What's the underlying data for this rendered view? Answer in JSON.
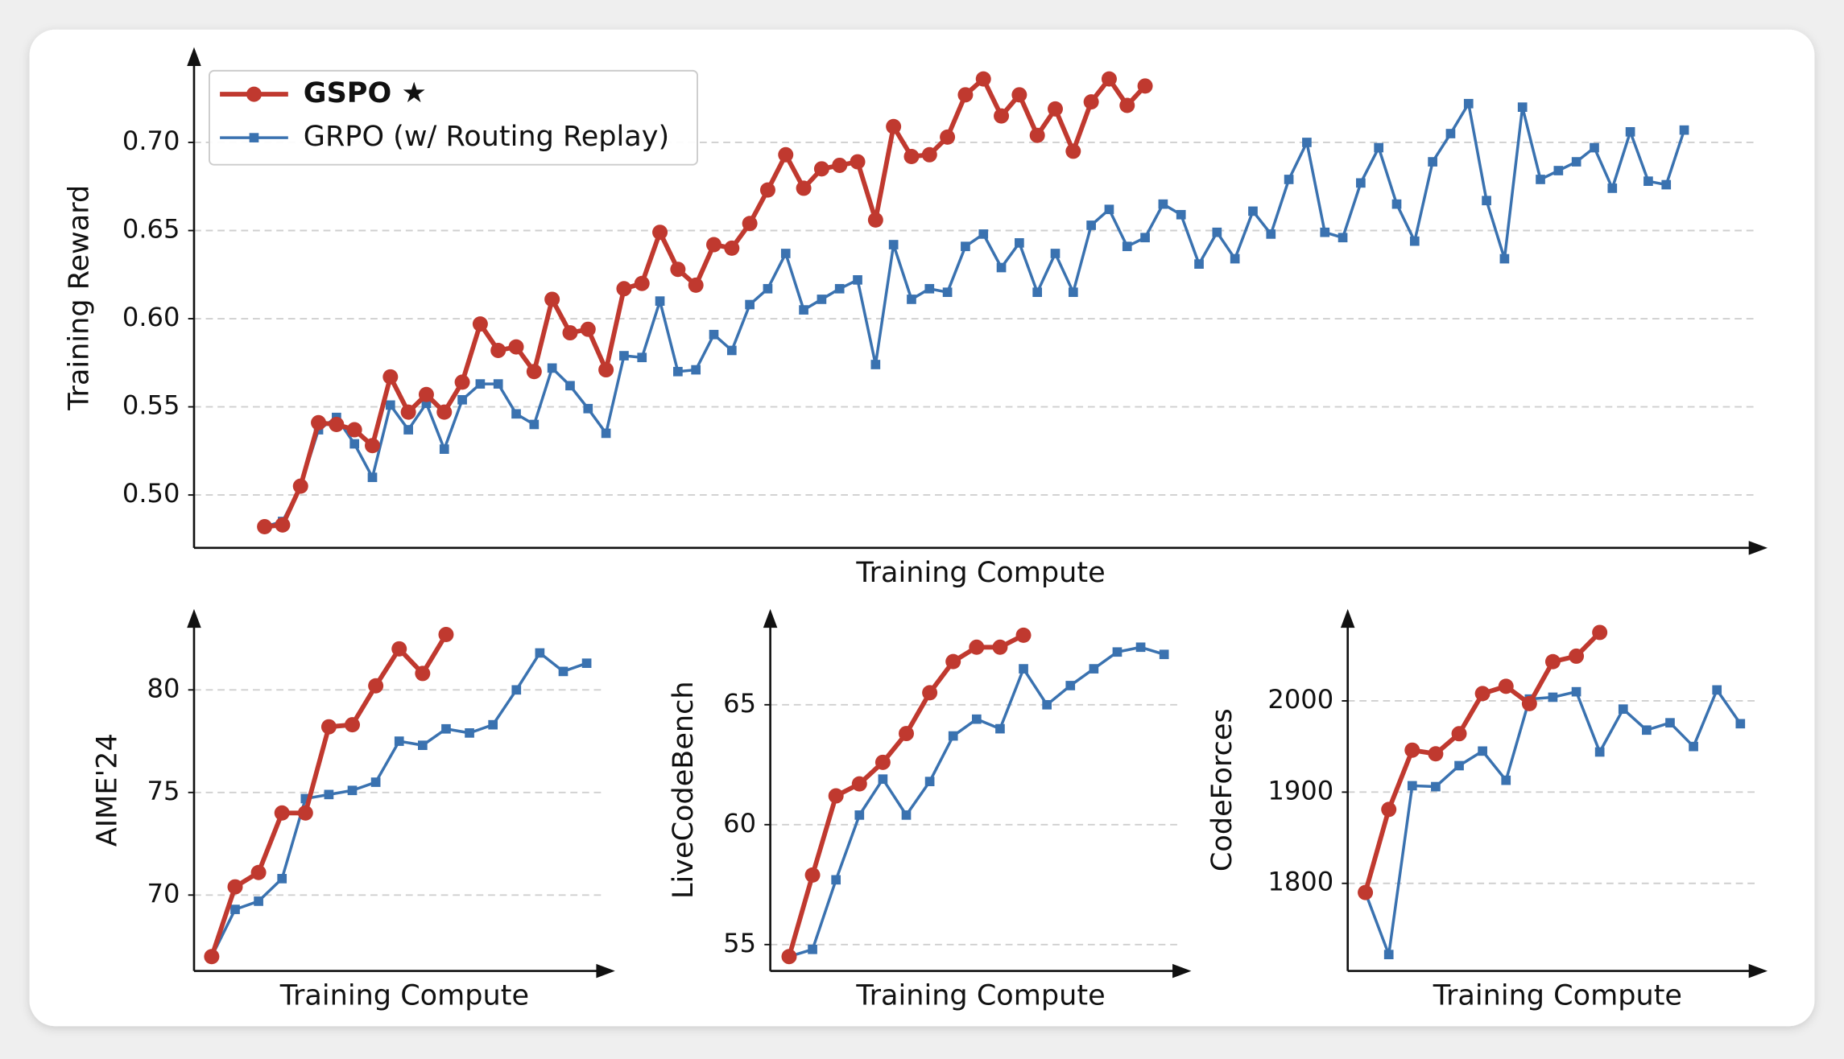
{
  "chart_data": [
    {
      "type": "line",
      "ylabel": "Training Reward",
      "xlabel": "Training Compute",
      "ylim": [
        0.47,
        0.75
      ],
      "yticks": [
        {
          "value": 0.5,
          "label": "0.50"
        },
        {
          "value": 0.55,
          "label": "0.55"
        },
        {
          "value": 0.6,
          "label": "0.60"
        },
        {
          "value": 0.65,
          "label": "0.65"
        },
        {
          "value": 0.7,
          "label": "0.70"
        }
      ],
      "grid": true,
      "legend": "upper left",
      "series": [
        {
          "name": "GSPO ★",
          "color": "#c0392f",
          "marker": "circle",
          "values": [
            0.482,
            0.483,
            0.505,
            0.541,
            0.54,
            0.537,
            0.528,
            0.567,
            0.547,
            0.557,
            0.547,
            0.564,
            0.597,
            0.582,
            0.584,
            0.57,
            0.611,
            0.592,
            0.594,
            0.571,
            0.617,
            0.62,
            0.649,
            0.628,
            0.619,
            0.642,
            0.64,
            0.654,
            0.673,
            0.693,
            0.674,
            0.685,
            0.687,
            0.689,
            0.656,
            0.709,
            0.692,
            0.693,
            0.703,
            0.727,
            0.736,
            0.715,
            0.727,
            0.704,
            0.719,
            0.695,
            0.723,
            0.736,
            0.721,
            0.732
          ]
        },
        {
          "name": "GRPO (w/ Routing Replay)",
          "color": "#3a72b0",
          "marker": "square",
          "values": [
            0.482,
            0.485,
            0.505,
            0.537,
            0.544,
            0.529,
            0.51,
            0.551,
            0.537,
            0.552,
            0.526,
            0.554,
            0.563,
            0.563,
            0.546,
            0.54,
            0.572,
            0.562,
            0.549,
            0.535,
            0.579,
            0.578,
            0.61,
            0.57,
            0.571,
            0.591,
            0.582,
            0.608,
            0.617,
            0.637,
            0.605,
            0.611,
            0.617,
            0.622,
            0.574,
            0.642,
            0.611,
            0.617,
            0.615,
            0.641,
            0.648,
            0.629,
            0.643,
            0.615,
            0.637,
            0.615,
            0.653,
            0.662,
            0.641,
            0.646,
            0.665,
            0.659,
            0.631,
            0.649,
            0.634,
            0.661,
            0.648,
            0.679,
            0.7,
            0.649,
            0.646,
            0.677,
            0.697,
            0.665,
            0.644,
            0.689,
            0.705,
            0.722,
            0.667,
            0.634,
            0.72,
            0.679,
            0.684,
            0.689,
            0.697,
            0.674,
            0.706,
            0.678,
            0.676,
            0.707
          ]
        }
      ]
    },
    {
      "type": "line",
      "ylabel": "AIME'24",
      "xlabel": "Training Compute",
      "ylim": [
        66.3,
        83.6
      ],
      "yticks": [
        70,
        75,
        80
      ],
      "grid": true,
      "series": [
        {
          "name": "GSPO ★",
          "color": "#c0392f",
          "marker": "circle",
          "values": [
            67.0,
            70.4,
            71.1,
            74.0,
            74.0,
            78.2,
            78.3,
            80.2,
            82.0,
            80.8,
            82.7
          ]
        },
        {
          "name": "GRPO (w/ Routing Replay)",
          "color": "#3a72b0",
          "marker": "square",
          "values": [
            67.0,
            69.3,
            69.7,
            70.8,
            74.7,
            74.9,
            75.1,
            75.5,
            77.5,
            77.3,
            78.1,
            77.9,
            78.3,
            80.0,
            81.8,
            80.9,
            81.3
          ]
        }
      ]
    },
    {
      "type": "line",
      "ylabel": "LiveCodeBench",
      "xlabel": "Training Compute",
      "ylim": [
        53.9,
        68.7
      ],
      "yticks": [
        55,
        60,
        65
      ],
      "grid": true,
      "series": [
        {
          "name": "GSPO ★",
          "color": "#c0392f",
          "marker": "circle",
          "values": [
            54.5,
            57.9,
            61.2,
            61.7,
            62.6,
            63.8,
            65.5,
            66.8,
            67.4,
            67.4,
            67.9
          ]
        },
        {
          "name": "GRPO (w/ Routing Replay)",
          "color": "#3a72b0",
          "marker": "square",
          "values": [
            54.5,
            54.8,
            57.7,
            60.4,
            61.9,
            60.4,
            61.8,
            63.7,
            64.4,
            64.0,
            66.5,
            65.0,
            65.8,
            66.5,
            67.2,
            67.4,
            67.1
          ]
        }
      ]
    },
    {
      "type": "line",
      "ylabel": "CodeForces",
      "xlabel": "Training Compute",
      "ylim": [
        1704,
        2093
      ],
      "yticks": [
        1800,
        1900,
        2000
      ],
      "grid": true,
      "series": [
        {
          "name": "GSPO ★",
          "color": "#c0392f",
          "marker": "circle",
          "values": [
            1790,
            1881,
            1946,
            1942,
            1964,
            2008,
            2016,
            1997,
            2043,
            2049,
            2075
          ]
        },
        {
          "name": "GRPO (w/ Routing Replay)",
          "color": "#3a72b0",
          "marker": "square",
          "values": [
            1790,
            1722,
            1907,
            1906,
            1929,
            1945,
            1913,
            2002,
            2004,
            2010,
            1944,
            1991,
            1968,
            1976,
            1950,
            2012,
            1975
          ]
        }
      ]
    }
  ]
}
